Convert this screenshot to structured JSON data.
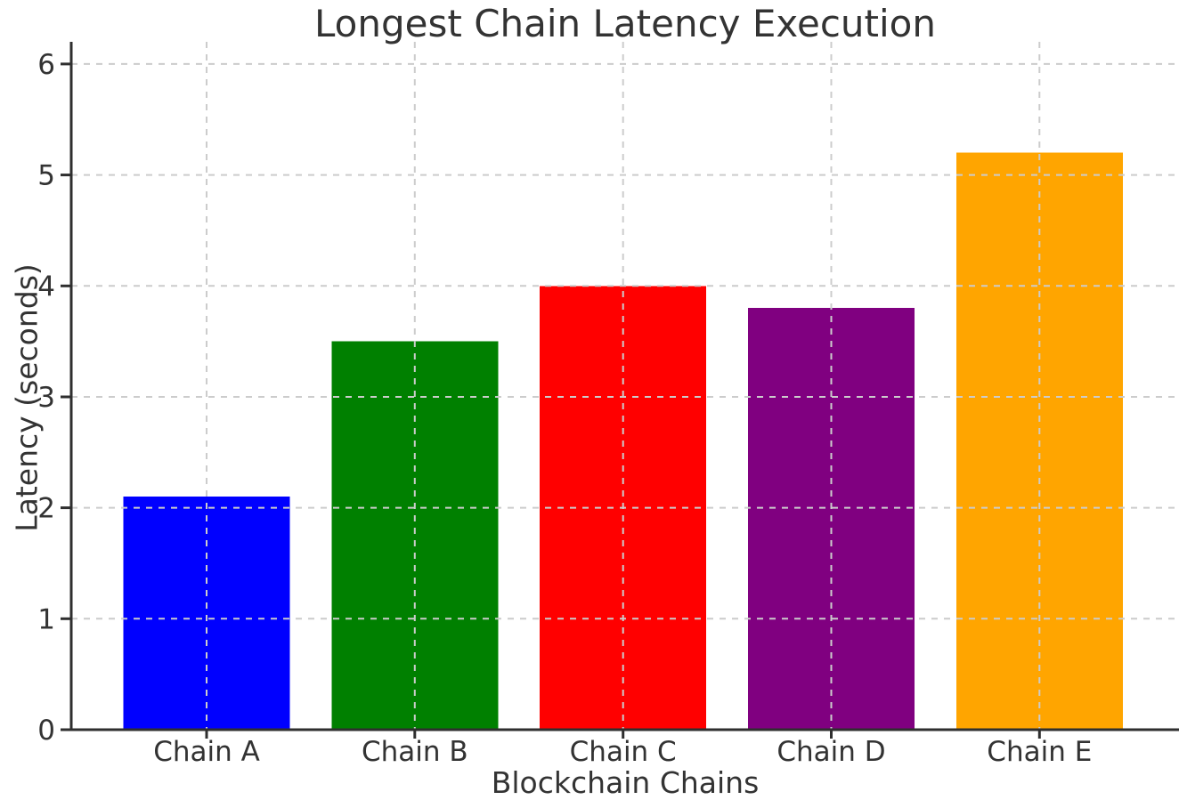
{
  "figure": {
    "background_color": "#ffffff",
    "text_color": "#333333",
    "spine_color": "#2f2f2f",
    "grid_color": "#cccccc"
  },
  "chart_data": {
    "type": "bar",
    "title": "Longest Chain Latency Execution",
    "xlabel": "Blockchain Chains",
    "ylabel": "Latency (seconds)",
    "categories": [
      "Chain A",
      "Chain B",
      "Chain C",
      "Chain D",
      "Chain E"
    ],
    "values": [
      2.1,
      3.5,
      4.0,
      3.8,
      5.2
    ],
    "bar_colors": [
      "#0000ff",
      "#008000",
      "#ff0000",
      "#800080",
      "#ffa500"
    ],
    "yticks": [
      0,
      1,
      2,
      3,
      4,
      5,
      6
    ],
    "ylim": [
      0,
      6.2
    ],
    "grid": "on",
    "grid_style": "dashed, drawn above bars, horizontal and vertical at bar centers",
    "legend_position": "none"
  }
}
